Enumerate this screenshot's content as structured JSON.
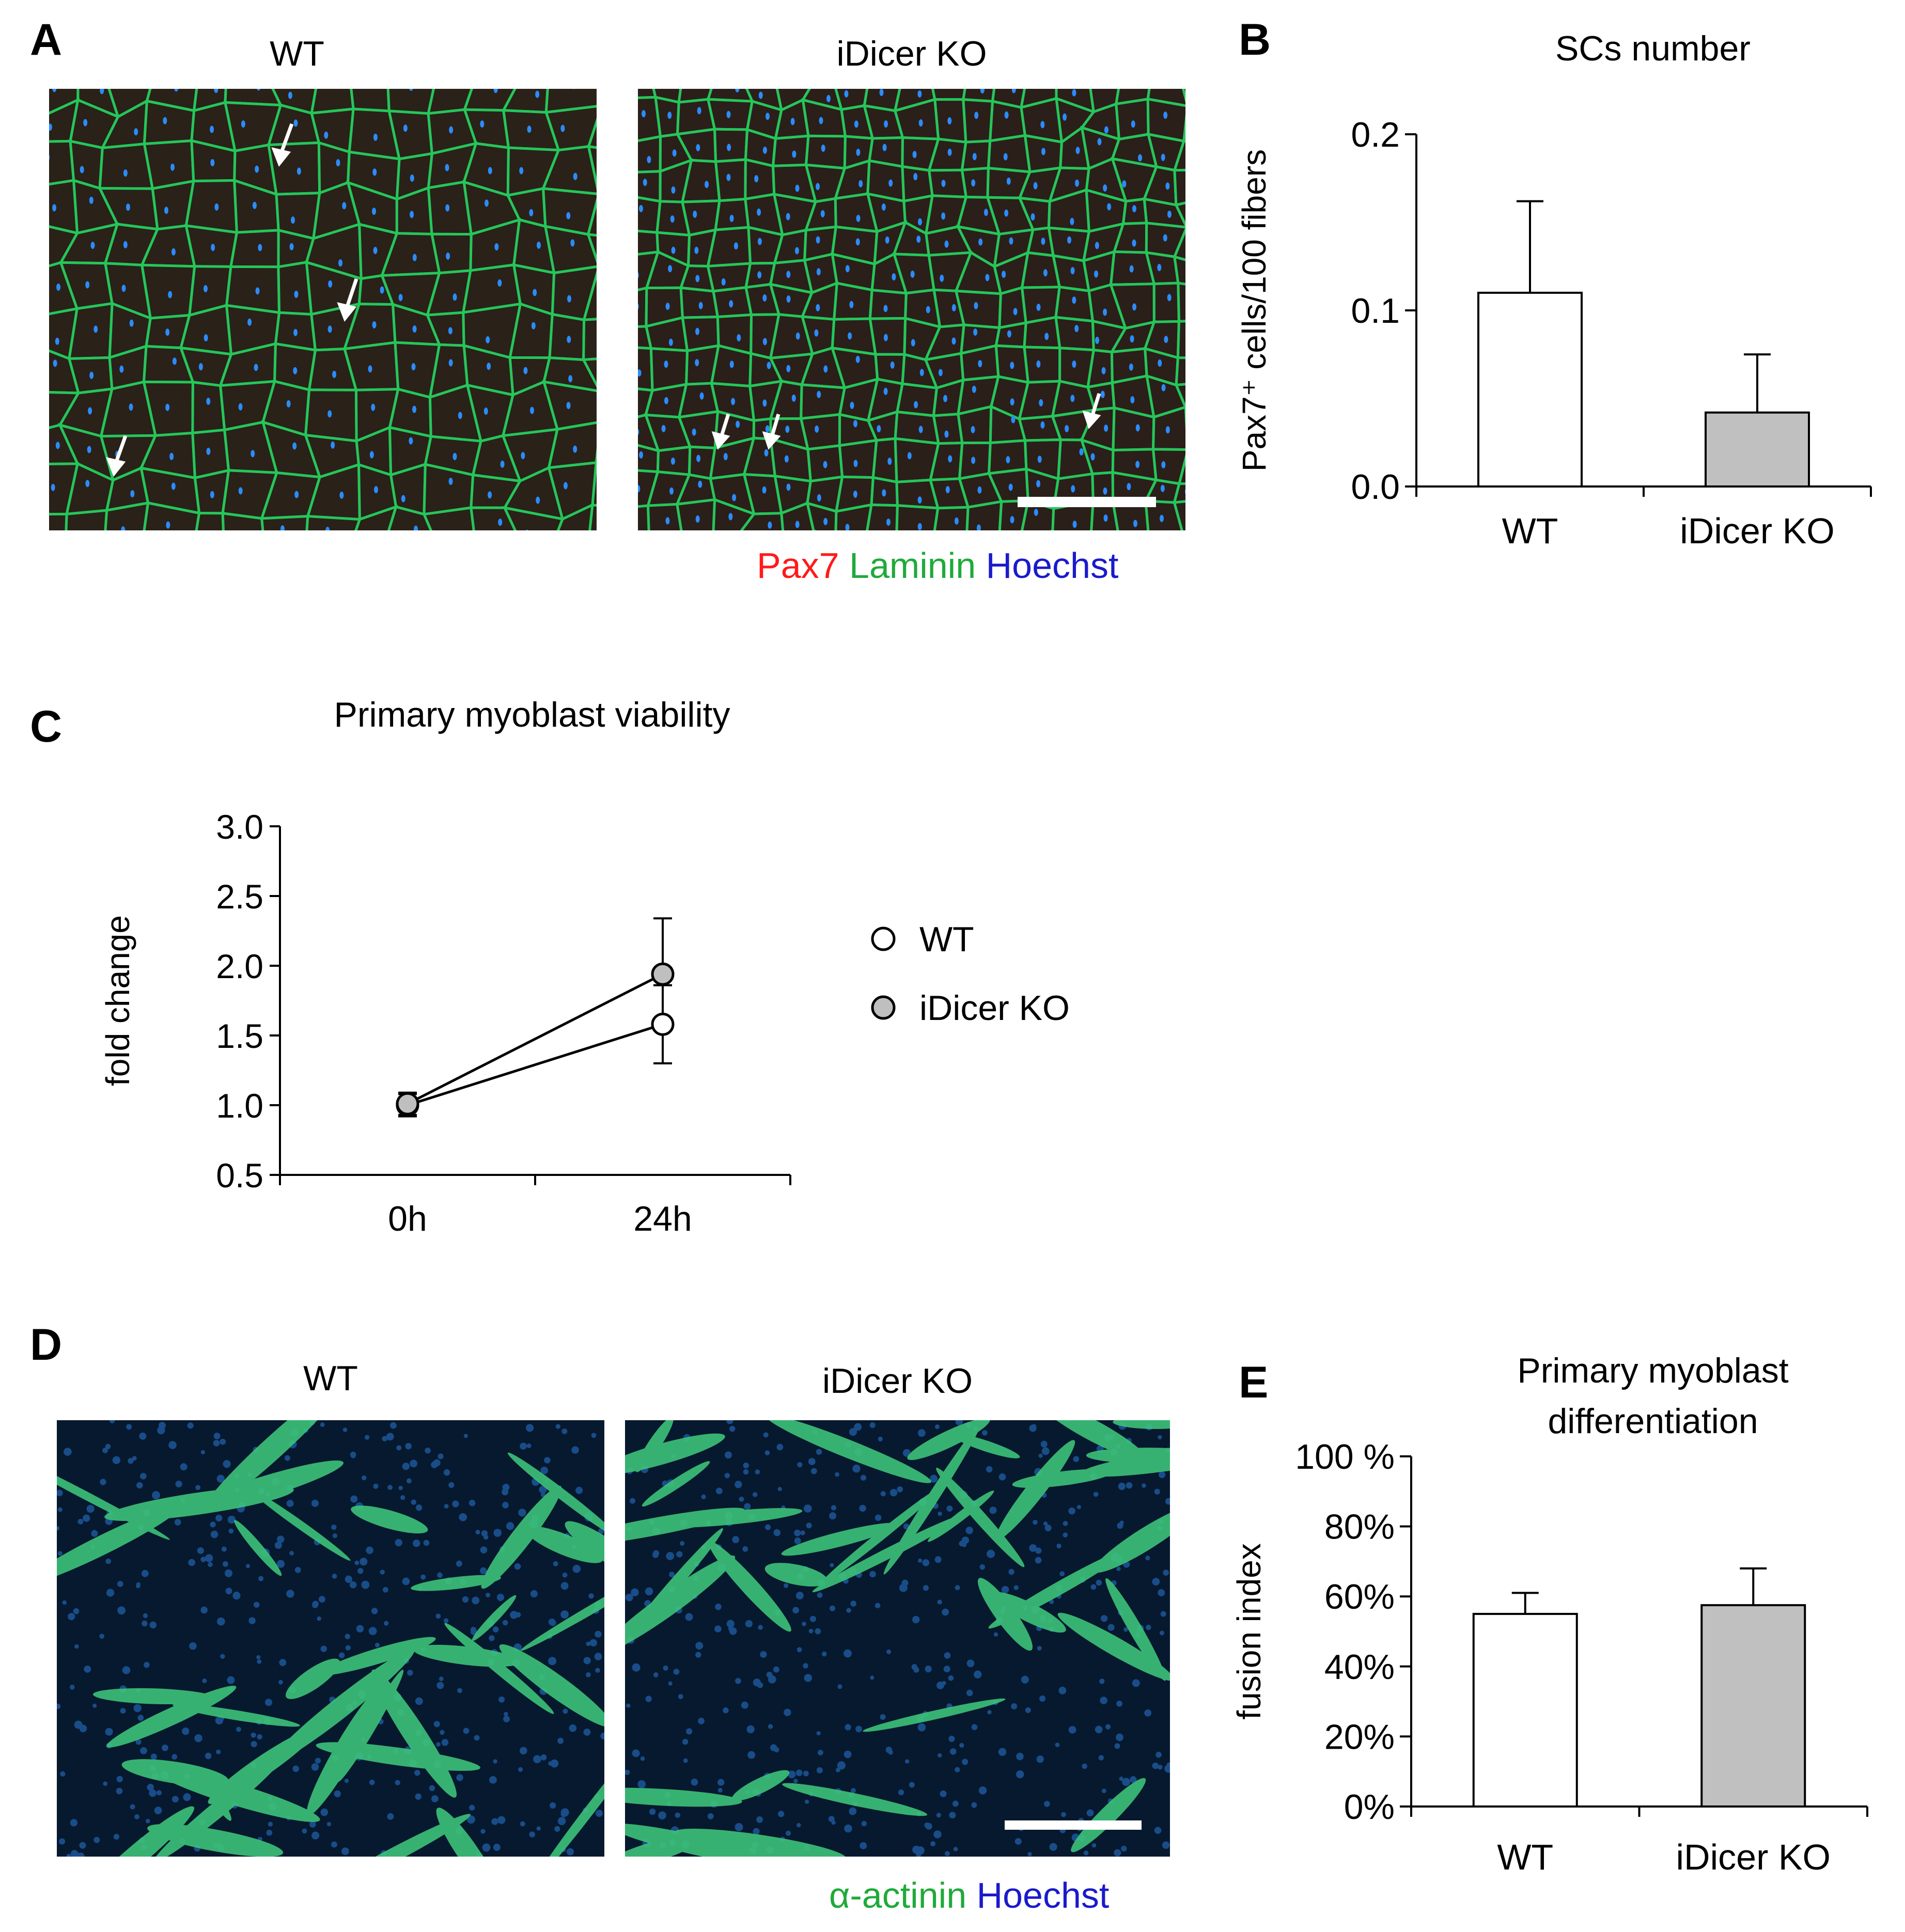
{
  "panels": {
    "a": {
      "letter": "A",
      "left_title": "WT",
      "right_title": "iDicer KO",
      "stain_legend": [
        {
          "text": "Pax7",
          "color": "#ff1a1a"
        },
        {
          "text": "Laminin",
          "color": "#1faa3a"
        },
        {
          "text": "Hoechst",
          "color": "#1a1acc"
        }
      ]
    },
    "b": {
      "letter": "B"
    },
    "c": {
      "letter": "C"
    },
    "d": {
      "letter": "D",
      "left_title": "WT",
      "right_title": "iDicer KO",
      "stain_legend": [
        {
          "text": "α-actinin",
          "color": "#1faa3a"
        },
        {
          "text": "Hoechst",
          "color": "#1a1acc"
        }
      ]
    },
    "e": {
      "letter": "E"
    }
  },
  "chart_data": [
    {
      "id": "b",
      "type": "bar",
      "title": "SCs number",
      "ylabel": "Pax7⁺ cells/100 fibers",
      "categories": [
        "WT",
        "iDicer KO"
      ],
      "values": [
        0.11,
        0.042
      ],
      "errors": [
        0.052,
        0.033
      ],
      "bar_colors": [
        "#ffffff",
        "#c0c0c0"
      ],
      "ylim": [
        0,
        0.2
      ],
      "yticks": [
        "0.0",
        "0.1",
        "0.2"
      ]
    },
    {
      "id": "c",
      "type": "line",
      "title": "Primary myoblast viability",
      "ylabel": "fold change",
      "x": [
        "0h",
        "24h"
      ],
      "ylim": [
        0.5,
        3.0
      ],
      "yticks": [
        "0.5",
        "1.0",
        "1.5",
        "2.0",
        "2.5",
        "3.0"
      ],
      "legend": "right",
      "series": [
        {
          "name": "WT",
          "values": [
            1.0,
            1.58
          ],
          "errors": [
            0.08,
            0.28
          ],
          "fill": "#ffffff"
        },
        {
          "name": "iDicer KO",
          "values": [
            1.01,
            1.94
          ],
          "errors": [
            0.08,
            0.4
          ],
          "fill": "#bfbfbf"
        }
      ]
    },
    {
      "id": "e",
      "type": "bar",
      "title": "Primary myoblast differentiation",
      "ylabel": "fusion index",
      "categories": [
        "WT",
        "iDicer KO"
      ],
      "values": [
        55,
        57.5
      ],
      "errors": [
        6,
        10.5
      ],
      "bar_colors": [
        "#ffffff",
        "#c0c0c0"
      ],
      "ylim": [
        0,
        100
      ],
      "yticks": [
        "0%",
        "20%",
        "40%",
        "60%",
        "80%",
        "100 %"
      ]
    }
  ]
}
